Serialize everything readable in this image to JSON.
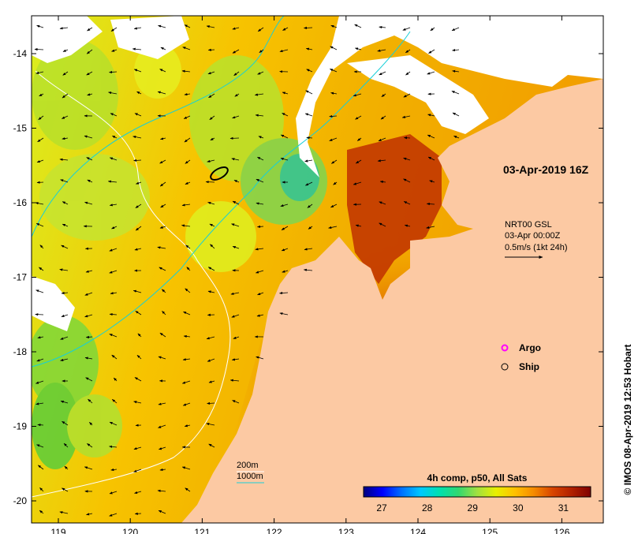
{
  "map": {
    "colors": {
      "land": "#fcc9a3",
      "cloud": "#ffffff",
      "isobath_200": "#ffffff",
      "isobath_1000": "#17cfd8",
      "arrow": "#000000"
    },
    "x_ticks": [
      "119",
      "120",
      "121",
      "122",
      "123",
      "124",
      "125",
      "126"
    ],
    "y_ticks": [
      "-14",
      "-15",
      "-16",
      "-17",
      "-18",
      "-19",
      "-20"
    ],
    "timestamp": "03-Apr-2019 16Z",
    "current_info": {
      "line1": "NRT00 GSL",
      "line2": "03-Apr 00:00Z",
      "line3": "0.5m/s (1kt 24h)"
    },
    "legend": {
      "argo": "Argo",
      "ship": "Ship",
      "argo_color": "#ff00ff"
    },
    "isobaths": {
      "label_200": "200m",
      "label_1000": "1000m"
    },
    "colorbar": {
      "title": "4h comp, p50, All Sats",
      "ticks": [
        "27",
        "28",
        "29",
        "30",
        "31"
      ],
      "min": 26.6,
      "max": 31.6,
      "stops": [
        "#000080",
        "#0000ff",
        "#0070ff",
        "#00c8ff",
        "#00e0b0",
        "#30d870",
        "#a0e040",
        "#e8f000",
        "#ffc000",
        "#f58a00",
        "#d84400",
        "#b02000",
        "#800000"
      ]
    },
    "credit": "© IMOS 08-Apr-2019 12:53 Hobart"
  }
}
